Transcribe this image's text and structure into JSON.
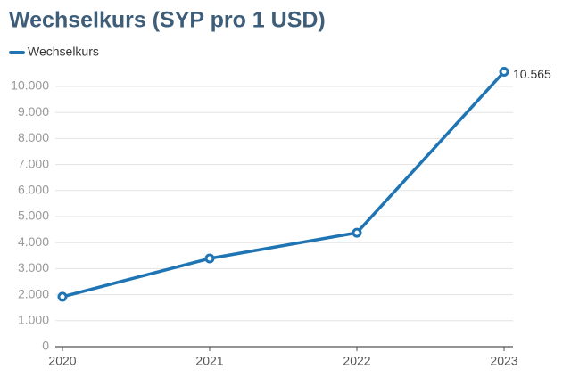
{
  "chart_data": {
    "type": "line",
    "title": "Wechselkurs (SYP pro 1 USD)",
    "categories": [
      "2020",
      "2021",
      "2022",
      "2023"
    ],
    "series": [
      {
        "name": "Wechselkurs",
        "color": "#1f74b4",
        "values": [
          1920,
          3390,
          4380,
          10565
        ],
        "value_labels": [
          null,
          null,
          null,
          "10.565"
        ]
      }
    ],
    "ylim": [
      0,
      10565
    ],
    "yticks": [
      0,
      {
        "value": 1000,
        "label": "1.000"
      },
      {
        "value": 2000,
        "label": "2.000"
      },
      {
        "value": 3000,
        "label": "3.000"
      },
      {
        "value": 4000,
        "label": "4.000"
      },
      {
        "value": 5000,
        "label": "5.000"
      },
      {
        "value": 6000,
        "label": "6.000"
      },
      {
        "value": 7000,
        "label": "7.000"
      },
      {
        "value": 8000,
        "label": "8.000"
      },
      {
        "value": 9000,
        "label": "9.000"
      },
      {
        "value": 10000,
        "label": "10.000"
      }
    ],
    "grid": true
  }
}
